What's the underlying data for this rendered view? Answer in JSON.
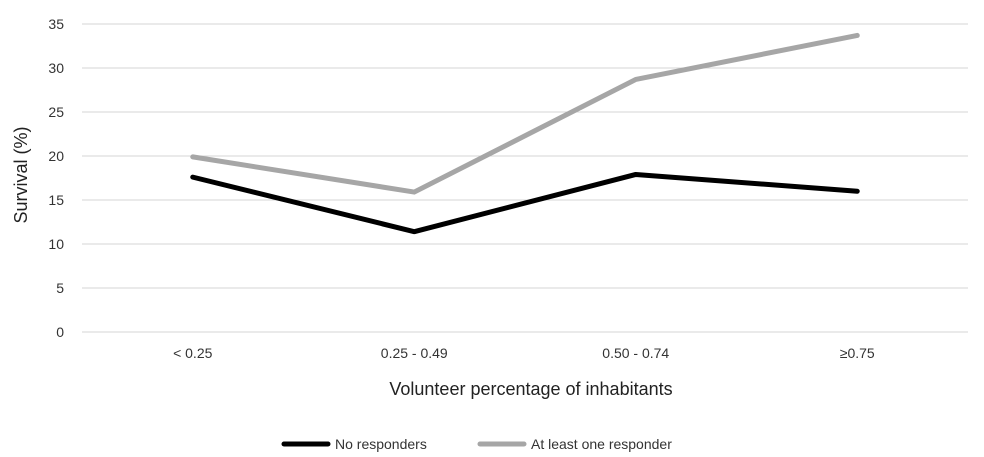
{
  "chart_data": {
    "type": "line",
    "categories": [
      "< 0.25",
      "0.25 - 0.49",
      "0.50 - 0.74",
      "≥0.75"
    ],
    "series": [
      {
        "name": "No responders",
        "values": [
          17.6,
          11.4,
          17.9,
          16.0
        ],
        "color": "#000000"
      },
      {
        "name": "At least one responder",
        "values": [
          19.9,
          15.9,
          28.7,
          33.7
        ],
        "color": "#a6a6a6"
      }
    ],
    "xlabel": "Volunteer percentage of inhabitants",
    "ylabel": "Survival (%)",
    "ylim": [
      0,
      35
    ],
    "yticks": [
      0,
      5,
      10,
      15,
      20,
      25,
      30,
      35
    ],
    "grid": true,
    "legend_position": "bottom"
  }
}
